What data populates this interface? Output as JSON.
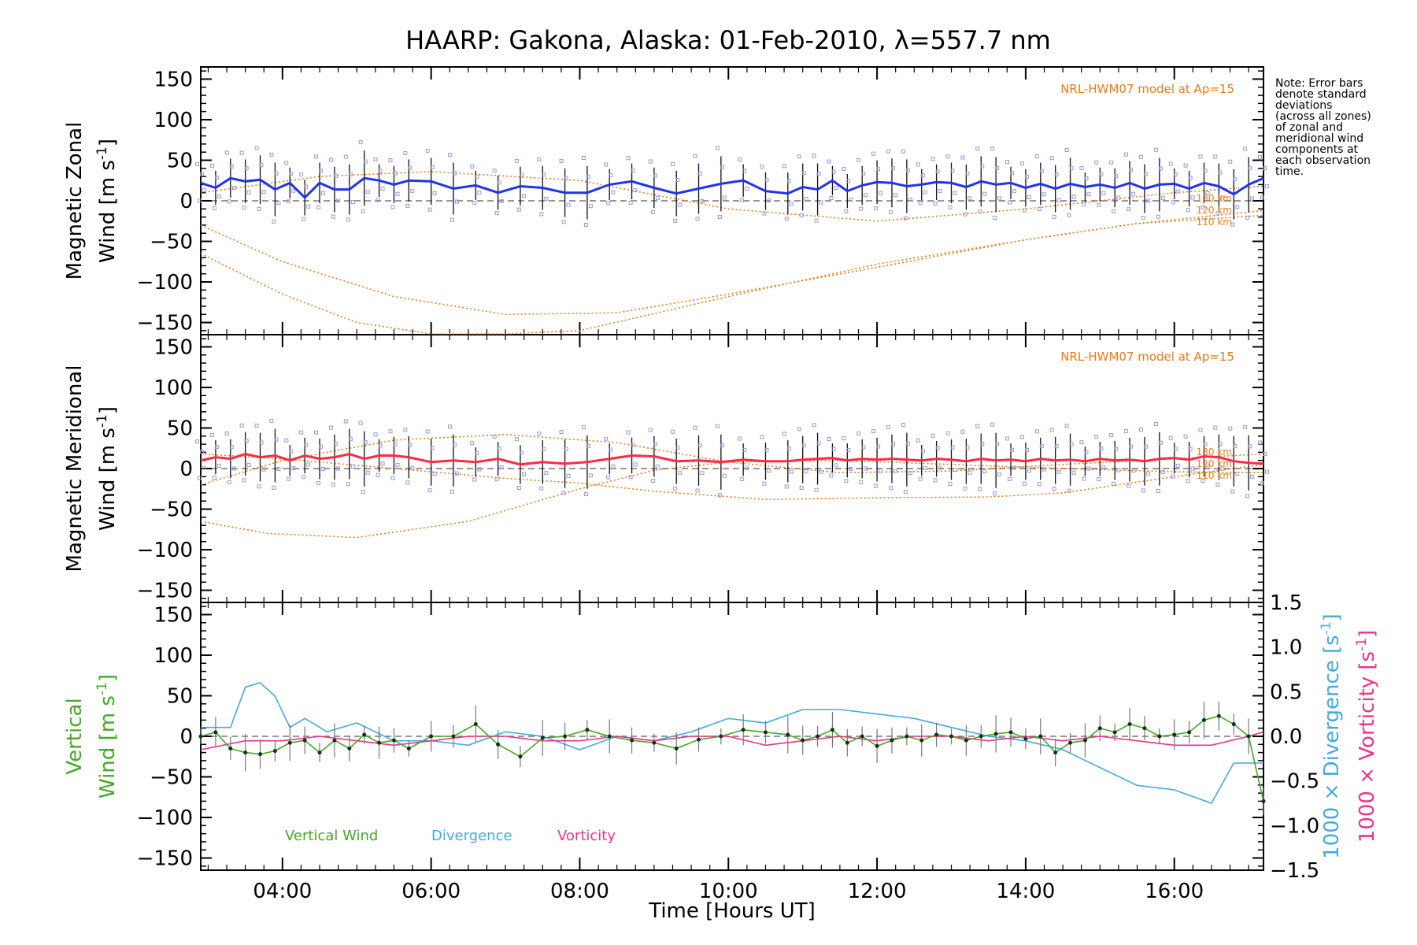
{
  "colors": {
    "zonal": "#2233ee",
    "meridional": "#ff2a44",
    "model": "#ee7a1a",
    "vertical": "#44aa22",
    "divergence": "#44aadd",
    "vorticity": "#ee3388",
    "samples": "#9999dd",
    "errbar": "#111111"
  },
  "chart_data": [
    {
      "type": "line",
      "panel": "zonal",
      "title": "HAARP: Gakona,  Alaska: 01-Feb-2010, λ=557.7 nm",
      "ylabel_line1": "Magnetic Zonal",
      "ylabel_line2": "Wind [m s",
      "ylabel_sup": "-1",
      "ylabel_close": "]",
      "xlim": [
        2.9,
        17.2
      ],
      "ylim": [
        -165,
        165
      ],
      "yticks": [
        "150",
        "100",
        "50",
        "0",
        "−50",
        "−100",
        "−150"
      ],
      "note": [
        "Note: Error bars",
        "denote standard",
        "deviations",
        "(across all zones)",
        "of zonal and",
        "meridional wind",
        "components at",
        "each observation",
        "time."
      ],
      "model_label": "NRL-HWM07 model at Ap=15",
      "model_alt_labels": [
        "130 km",
        "120 km",
        "110 km"
      ],
      "series": [
        {
          "name": "zonal mean",
          "x": [
            2.9,
            3.1,
            3.3,
            3.5,
            3.7,
            3.9,
            4.1,
            4.3,
            4.5,
            4.7,
            4.9,
            5.1,
            5.3,
            5.5,
            5.7,
            6.0,
            6.3,
            6.6,
            6.9,
            7.2,
            7.5,
            7.8,
            8.1,
            8.4,
            8.7,
            9.0,
            9.3,
            9.6,
            9.9,
            10.2,
            10.5,
            10.8,
            11.0,
            11.2,
            11.4,
            11.6,
            11.8,
            12.0,
            12.2,
            12.4,
            12.6,
            12.8,
            13.0,
            13.2,
            13.4,
            13.6,
            13.8,
            14.0,
            14.2,
            14.4,
            14.6,
            14.8,
            15.0,
            15.2,
            15.4,
            15.6,
            15.8,
            16.0,
            16.2,
            16.4,
            16.6,
            16.8,
            17.0,
            17.2
          ],
          "y": [
            22,
            16,
            28,
            24,
            26,
            14,
            22,
            4,
            22,
            14,
            14,
            28,
            25,
            20,
            25,
            24,
            15,
            19,
            10,
            18,
            16,
            10,
            10,
            20,
            24,
            16,
            9,
            15,
            21,
            25,
            12,
            9,
            17,
            14,
            25,
            12,
            19,
            23,
            22,
            18,
            20,
            23,
            22,
            17,
            24,
            20,
            22,
            16,
            21,
            15,
            21,
            17,
            20,
            16,
            22,
            15,
            20,
            21,
            15,
            22,
            18,
            8,
            20,
            28
          ]
        },
        {
          "name": "model 130 km",
          "x": [
            2.9,
            4.5,
            6.0,
            8.0,
            10.0,
            12.0,
            14.0,
            16.0,
            17.2
          ],
          "y": [
            10,
            30,
            36,
            25,
            -10,
            -25,
            -10,
            10,
            18
          ]
        },
        {
          "name": "model 120 km",
          "x": [
            2.9,
            4.0,
            5.5,
            7.0,
            8.5,
            10.0,
            12.0,
            14.0,
            15.5,
            17.2
          ],
          "y": [
            -30,
            -75,
            -118,
            -140,
            -138,
            -115,
            -82,
            -48,
            -28,
            -18
          ]
        },
        {
          "name": "model 110 km",
          "x": [
            2.9,
            4.0,
            5.0,
            6.0,
            7.0,
            8.0,
            10.0,
            12.0,
            14.0,
            15.5,
            17.2
          ],
          "y": [
            -65,
            -115,
            -150,
            -172,
            -172,
            -160,
            -118,
            -78,
            -48,
            -28,
            -12
          ]
        }
      ]
    },
    {
      "type": "line",
      "panel": "meridional",
      "ylabel_line1": "Magnetic Meridional",
      "ylabel_line2": "Wind [m s",
      "ylabel_sup": "-1",
      "ylabel_close": "]",
      "xlim": [
        2.9,
        17.2
      ],
      "ylim": [
        -165,
        165
      ],
      "yticks": [
        "150",
        "100",
        "50",
        "0",
        "−50",
        "−100",
        "−150"
      ],
      "model_label": "NRL-HWM07 model at Ap=15",
      "model_alt_labels": [
        "130 km",
        "120 km",
        "110 km"
      ],
      "series": [
        {
          "name": "meridional mean",
          "x": [
            2.9,
            3.1,
            3.3,
            3.5,
            3.7,
            3.9,
            4.1,
            4.3,
            4.5,
            4.7,
            4.9,
            5.1,
            5.3,
            5.5,
            5.7,
            6.0,
            6.3,
            6.6,
            6.9,
            7.2,
            7.5,
            7.8,
            8.1,
            8.4,
            8.7,
            9.0,
            9.3,
            9.6,
            9.9,
            10.2,
            10.5,
            10.8,
            11.0,
            11.2,
            11.4,
            11.6,
            11.8,
            12.0,
            12.2,
            12.4,
            12.6,
            12.8,
            13.0,
            13.2,
            13.4,
            13.6,
            13.8,
            14.0,
            14.2,
            14.4,
            14.6,
            14.8,
            15.0,
            15.2,
            15.4,
            15.6,
            15.8,
            16.0,
            16.2,
            16.4,
            16.6,
            16.8,
            17.0,
            17.2
          ],
          "y": [
            10,
            14,
            12,
            18,
            14,
            16,
            10,
            16,
            12,
            14,
            18,
            12,
            16,
            16,
            14,
            8,
            10,
            8,
            12,
            5,
            8,
            6,
            8,
            12,
            16,
            15,
            9,
            10,
            8,
            11,
            9,
            9,
            11,
            12,
            13,
            10,
            12,
            11,
            12,
            11,
            10,
            12,
            11,
            9,
            12,
            10,
            11,
            9,
            12,
            10,
            11,
            9,
            12,
            10,
            11,
            9,
            12,
            13,
            11,
            15,
            14,
            9,
            7,
            6
          ]
        },
        {
          "name": "model 130 km",
          "x": [
            2.9,
            4.0,
            5.5,
            7.0,
            8.5,
            10.0,
            11.5,
            13.0,
            14.5,
            16.0,
            17.2
          ],
          "y": [
            -20,
            10,
            35,
            42,
            32,
            8,
            -5,
            -3,
            5,
            12,
            18
          ]
        },
        {
          "name": "model 120 km",
          "x": [
            2.9,
            3.8,
            5.0,
            6.5,
            8.0,
            9.0,
            10.0,
            11.5,
            13.0,
            14.5,
            16.0,
            17.2
          ],
          "y": [
            -65,
            -80,
            -85,
            -65,
            -25,
            -2,
            8,
            10,
            5,
            0,
            -4,
            -5
          ]
        },
        {
          "name": "model 110 km",
          "x": [
            2.9,
            4.0,
            5.5,
            7.0,
            8.0,
            9.0,
            10.5,
            12.0,
            13.5,
            14.5,
            16.0,
            17.2
          ],
          "y": [
            18,
            12,
            0,
            -12,
            -18,
            -28,
            -38,
            -36,
            -35,
            -30,
            -10,
            5
          ]
        }
      ]
    },
    {
      "type": "line",
      "panel": "vertical",
      "ylabel_line1": "Vertical",
      "ylabel_line2": "Wind [m s",
      "ylabel_sup": "-1",
      "ylabel_close": "]",
      "y2label_div": "1000 × Divergence [s",
      "y2label_vor": "1000 × Vorticity [s",
      "y2_sup": "-1",
      "y2_close": "]",
      "xlabel": "Time [Hours UT]",
      "xlim": [
        2.9,
        17.2
      ],
      "ylim": [
        -165,
        165
      ],
      "y2lim": [
        -1.5,
        1.5
      ],
      "yticks": [
        "150",
        "100",
        "50",
        "0",
        "−50",
        "−100",
        "−150"
      ],
      "y2ticks": [
        "1.5",
        "1.0",
        "0.5",
        "0.0",
        "−0.5",
        "−1.0",
        "−1.5"
      ],
      "xticks": [
        "04:00",
        "06:00",
        "08:00",
        "10:00",
        "12:00",
        "14:00",
        "16:00"
      ],
      "legend": [
        "Vertical Wind",
        "Divergence",
        "Vorticity"
      ],
      "series": [
        {
          "name": "Vertical Wind",
          "x": [
            2.9,
            3.1,
            3.3,
            3.5,
            3.7,
            3.9,
            4.1,
            4.3,
            4.5,
            4.7,
            4.9,
            5.1,
            5.3,
            5.5,
            5.7,
            6.0,
            6.3,
            6.6,
            6.9,
            7.2,
            7.5,
            7.8,
            8.1,
            8.4,
            8.7,
            9.0,
            9.3,
            9.6,
            9.9,
            10.2,
            10.5,
            10.8,
            11.0,
            11.2,
            11.4,
            11.6,
            11.8,
            12.0,
            12.2,
            12.4,
            12.6,
            12.8,
            13.0,
            13.2,
            13.4,
            13.6,
            13.8,
            14.0,
            14.2,
            14.4,
            14.6,
            14.8,
            15.0,
            15.2,
            15.4,
            15.6,
            15.8,
            16.0,
            16.2,
            16.4,
            16.6,
            16.8,
            17.0,
            17.2
          ],
          "y": [
            0,
            5,
            -15,
            -20,
            -22,
            -18,
            -8,
            -5,
            -20,
            -5,
            -15,
            2,
            -8,
            -5,
            -15,
            0,
            0,
            15,
            -10,
            -25,
            -2,
            0,
            8,
            0,
            -5,
            -8,
            -15,
            -4,
            0,
            8,
            5,
            2,
            -5,
            0,
            8,
            -8,
            0,
            -12,
            -5,
            0,
            -5,
            2,
            0,
            -5,
            0,
            3,
            5,
            -3,
            0,
            -20,
            -8,
            -5,
            10,
            5,
            15,
            10,
            0,
            2,
            5,
            20,
            25,
            15,
            0,
            -80
          ]
        },
        {
          "name": "Divergence",
          "x": [
            2.9,
            3.1,
            3.3,
            3.5,
            3.7,
            3.9,
            4.1,
            4.3,
            4.6,
            5.0,
            5.5,
            6.0,
            6.5,
            7.0,
            7.5,
            8.0,
            8.5,
            9.0,
            9.5,
            10.0,
            10.5,
            11.0,
            11.5,
            12.0,
            12.5,
            13.0,
            13.5,
            14.0,
            14.5,
            15.0,
            15.5,
            16.0,
            16.5,
            16.8,
            17.0,
            17.2
          ],
          "y": [
            0.1,
            0.1,
            0.1,
            0.55,
            0.6,
            0.45,
            0.1,
            0.2,
            0.05,
            0.15,
            -0.05,
            -0.05,
            -0.1,
            0.05,
            0.0,
            -0.15,
            0.0,
            -0.05,
            0.05,
            0.2,
            0.15,
            0.3,
            0.3,
            0.25,
            0.2,
            0.1,
            0.0,
            -0.05,
            -0.15,
            -0.35,
            -0.55,
            -0.6,
            -0.75,
            -0.3,
            -0.3,
            -0.3
          ]
        },
        {
          "name": "Vorticity",
          "x": [
            2.9,
            3.5,
            4.0,
            4.5,
            5.0,
            5.5,
            6.0,
            6.5,
            7.0,
            7.5,
            8.0,
            8.5,
            9.0,
            9.5,
            10.0,
            10.5,
            11.0,
            11.5,
            12.0,
            12.5,
            13.0,
            13.5,
            14.0,
            14.5,
            15.0,
            15.5,
            16.0,
            16.5,
            17.0,
            17.2
          ],
          "y": [
            -0.15,
            -0.05,
            -0.05,
            0.0,
            -0.05,
            -0.1,
            -0.05,
            0.0,
            0.0,
            -0.05,
            -0.05,
            0.0,
            -0.05,
            0.0,
            0.0,
            -0.1,
            -0.05,
            0.0,
            -0.05,
            0.0,
            0.0,
            -0.05,
            0.0,
            -0.05,
            0.0,
            -0.05,
            -0.1,
            -0.1,
            0.0,
            0.05
          ]
        }
      ]
    }
  ]
}
